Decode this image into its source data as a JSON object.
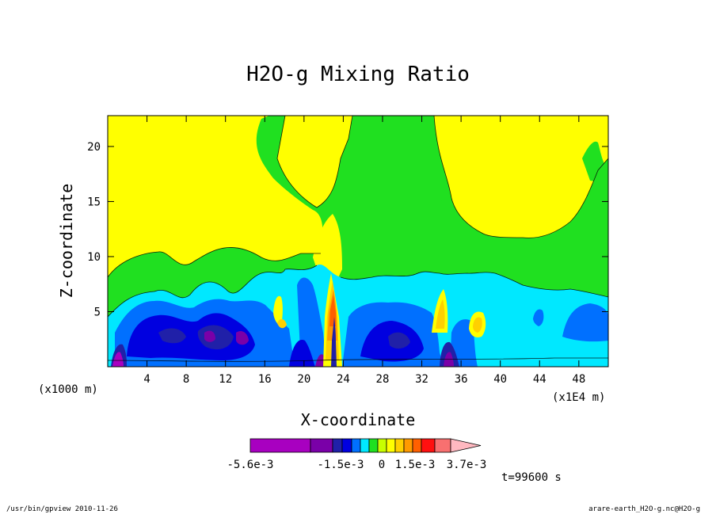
{
  "chart_data": {
    "type": "heatmap",
    "title": "H2O-g Mixing Ratio",
    "xlabel": "X-coordinate",
    "ylabel": "Z-coordinate",
    "x_unit_left": "(x1000 m)",
    "x_unit_right": "(x1E4 m)",
    "x_ticks": [
      "4",
      "8",
      "12",
      "16",
      "20",
      "24",
      "28",
      "32",
      "36",
      "40",
      "44",
      "48"
    ],
    "y_ticks": [
      "5",
      "10",
      "15",
      "20"
    ],
    "xlim": [
      0,
      51
    ],
    "ylim": [
      0,
      22.8
    ],
    "colorbar": {
      "colors": [
        "#a800c0",
        "#7a00a8",
        "#2020a8",
        "#0000e0",
        "#0070ff",
        "#00e8ff",
        "#20e020",
        "#c8ff00",
        "#ffff00",
        "#ffd000",
        "#ff9a00",
        "#ff6000",
        "#ff1010",
        "#f87070",
        "#ffb8c0"
      ],
      "labels": [
        "-5.6e-3",
        "-1.5e-3",
        "0",
        "1.5e-3",
        "3.7e-3"
      ]
    },
    "time_label": "t=99600 s"
  },
  "footer": {
    "left": "/usr/bin/gpview  2010-11-26",
    "right": "arare-earth_H2O-g.nc@H2O-g"
  }
}
